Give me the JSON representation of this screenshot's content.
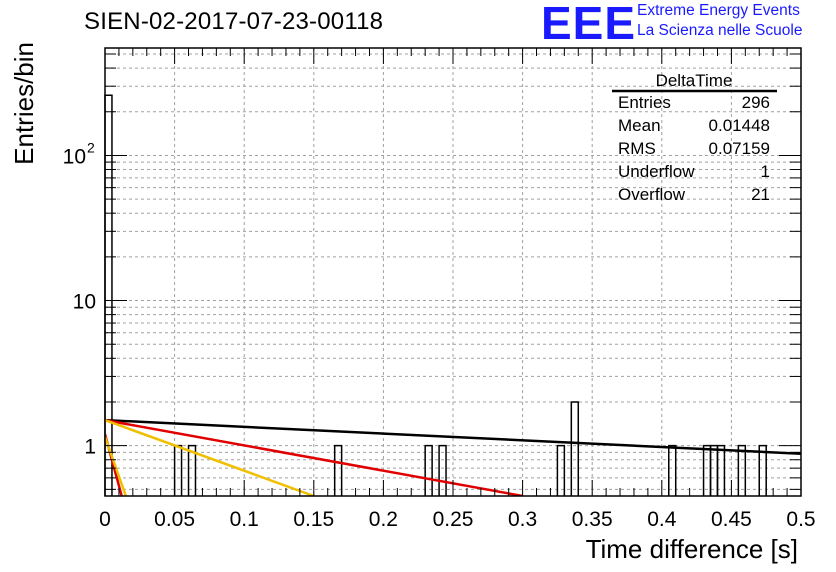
{
  "title": "SIEN-02-2017-07-23-00118",
  "logo": {
    "mark": "EEE",
    "line1": "Extreme Energy Events",
    "line2": "La Scienza nelle Scuole",
    "mark_color": "#1a1aff",
    "text_color": "#1a1aff"
  },
  "stats_box": {
    "name": "DeltaTime",
    "rows": [
      {
        "label": "Entries",
        "value": "296"
      },
      {
        "label": "Mean",
        "value": "0.01448"
      },
      {
        "label": "RMS",
        "value": "0.07159"
      },
      {
        "label": "Underflow",
        "value": "1"
      },
      {
        "label": "Overflow",
        "value": "21"
      }
    ]
  },
  "chart_data": {
    "type": "bar",
    "xlabel": "Time difference [s]",
    "ylabel": "Entries/bin",
    "xlim": [
      0,
      0.5
    ],
    "ylim": [
      0.45,
      550
    ],
    "yscale": "log",
    "grid": true,
    "x_ticks": [
      "0",
      "0.05",
      "0.1",
      "0.15",
      "0.2",
      "0.25",
      "0.3",
      "0.35",
      "0.4",
      "0.45",
      "0.5"
    ],
    "y_ticks": [
      {
        "value": 1,
        "label": "1"
      },
      {
        "value": 10,
        "label": "10"
      },
      {
        "value": 100,
        "label": "10",
        "exponent": "2"
      }
    ],
    "bin_width": 0.005,
    "bins": [
      {
        "x": 0.0,
        "count": 260
      },
      {
        "x": 0.05,
        "count": 1
      },
      {
        "x": 0.06,
        "count": 1
      },
      {
        "x": 0.165,
        "count": 1
      },
      {
        "x": 0.23,
        "count": 1
      },
      {
        "x": 0.24,
        "count": 1
      },
      {
        "x": 0.325,
        "count": 1
      },
      {
        "x": 0.335,
        "count": 2
      },
      {
        "x": 0.405,
        "count": 1
      },
      {
        "x": 0.43,
        "count": 1
      },
      {
        "x": 0.435,
        "count": 1
      },
      {
        "x": 0.44,
        "count": 1
      },
      {
        "x": 0.455,
        "count": 1
      },
      {
        "x": 0.47,
        "count": 1
      }
    ],
    "fits": [
      {
        "color": "#000000",
        "points": [
          [
            0.0,
            1.5
          ],
          [
            0.5,
            0.88
          ]
        ]
      },
      {
        "color": "#e00000",
        "points": [
          [
            0.0,
            1.5
          ],
          [
            0.3,
            0.45
          ]
        ]
      },
      {
        "color": "#f0c000",
        "points": [
          [
            0.0,
            1.5
          ],
          [
            0.15,
            0.45
          ]
        ]
      },
      {
        "color": "#e00000",
        "points": [
          [
            0.0,
            1.2
          ],
          [
            0.012,
            0.45
          ]
        ]
      },
      {
        "color": "#f0c000",
        "points": [
          [
            0.0,
            1.15
          ],
          [
            0.015,
            0.45
          ]
        ]
      }
    ]
  }
}
